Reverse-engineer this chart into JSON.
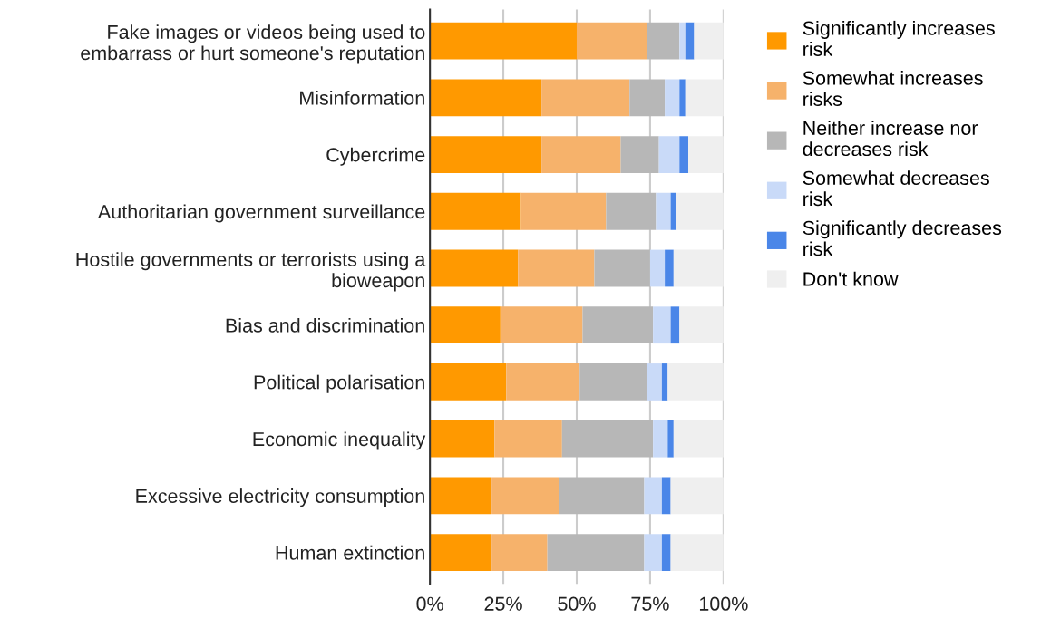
{
  "chart_data": {
    "type": "bar",
    "orientation": "horizontal",
    "stacked": true,
    "categories": [
      "Fake images or videos being used to\nembarrass or hurt someone's reputation",
      "Misinformation",
      "Cybercrime",
      "Authoritarian government surveillance",
      "Hostile governments or terrorists using a\nbioweapon",
      "Bias and discrimination",
      "Political polarisation",
      "Economic inequality",
      "Excessive electricity consumption",
      "Human extinction"
    ],
    "series": [
      {
        "name": "Significantly increases\nrisk",
        "color": "#ff9900",
        "values": [
          50,
          38,
          38,
          31,
          30,
          24,
          26,
          22,
          21,
          21
        ]
      },
      {
        "name": "Somewhat increases\nrisks",
        "color": "#f6b26b",
        "values": [
          24,
          30,
          27,
          29,
          26,
          28,
          25,
          23,
          23,
          19
        ]
      },
      {
        "name": "Neither increase nor\ndecreases risk",
        "color": "#b7b7b7",
        "values": [
          11,
          12,
          13,
          17,
          19,
          24,
          23,
          31,
          29,
          33
        ]
      },
      {
        "name": "Somewhat decreases\nrisk",
        "color": "#c9daf8",
        "values": [
          2,
          5,
          7,
          5,
          5,
          6,
          5,
          5,
          6,
          6
        ]
      },
      {
        "name": "Significantly decreases\nrisk",
        "color": "#4a86e8",
        "values": [
          3,
          2,
          3,
          2,
          3,
          3,
          2,
          2,
          3,
          3
        ]
      },
      {
        "name": "Don't know",
        "color": "#efefef",
        "values": [
          10,
          13,
          12,
          16,
          17,
          15,
          19,
          17,
          18,
          18
        ]
      }
    ],
    "xlim": [
      0,
      100
    ],
    "xticks": [
      {
        "value": 0,
        "label": "0%"
      },
      {
        "value": 25,
        "label": "25%"
      },
      {
        "value": 50,
        "label": "50%"
      },
      {
        "value": 75,
        "label": "75%"
      },
      {
        "value": 100,
        "label": "100%"
      }
    ],
    "grid": "x",
    "legend": "top right"
  }
}
